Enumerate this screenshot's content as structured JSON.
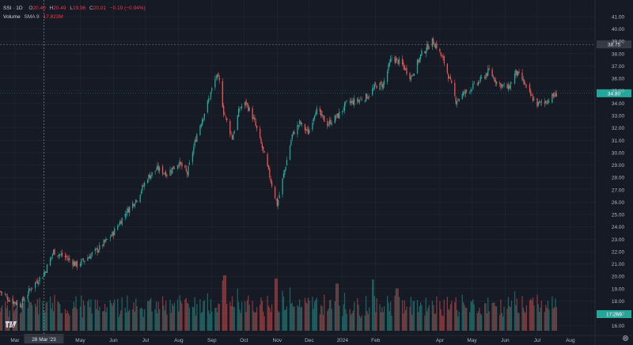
{
  "header": {
    "symbol_label": "SSI · 1D",
    "open_key": "O",
    "open": "20.40",
    "high_key": "H",
    "high": "20.49",
    "low_key": "L",
    "low": "19.96",
    "close_key": "C",
    "close": "20.01",
    "change": "−0.19 (−0.94%)",
    "volume_label": "Volume",
    "sma_label": "SMA 9",
    "sma_value": "17.823M"
  },
  "crosshair": {
    "date_label": "28 Mar '23",
    "price_label": "38.75"
  },
  "last_price_label": "34.80",
  "last_volume_label": "17.269",
  "colors": {
    "background": "#161a25",
    "up": "#26a69a",
    "down": "#ef5350",
    "grid": "#232733",
    "text": "#b2b5be",
    "last_price_tag": "#26a69a"
  },
  "icons": {
    "logo": "tradingview-logo-icon",
    "settings": "gear-icon"
  },
  "chart_data": {
    "type": "candlestick",
    "interval": "1D",
    "y_axis": {
      "ticks": [
        "16.00",
        "17.00",
        "18.00",
        "19.00",
        "20.00",
        "21.00",
        "22.00",
        "23.00",
        "24.00",
        "25.00",
        "26.00",
        "27.00",
        "28.00",
        "29.00",
        "30.00",
        "31.00",
        "32.00",
        "33.00",
        "34.00",
        "35.00",
        "36.00",
        "37.00",
        "38.00",
        "39.00",
        "40.00",
        "41.00"
      ],
      "range": [
        15.6,
        41.7
      ]
    },
    "x_axis": {
      "labels": [
        "Mar",
        "May",
        "Jun",
        "Jul",
        "Aug",
        "Sep",
        "Oct",
        "Nov",
        "Dec",
        "2024",
        "Feb",
        "Apr",
        "May",
        "Jun",
        "Jul",
        "Aug"
      ],
      "range": [
        "2023-02-15",
        "2024-08-24"
      ],
      "ticks": [
        "2023-03-01",
        "2023-05-01",
        "2023-06-01",
        "2023-07-01",
        "2023-08-01",
        "2023-09-01",
        "2023-10-01",
        "2023-11-01",
        "2023-12-01",
        "2024-01-01",
        "2024-02-01",
        "2024-04-01",
        "2024-05-01",
        "2024-06-01",
        "2024-07-01",
        "2024-08-01"
      ]
    },
    "close_path": [
      {
        "date": "2023-02-15",
        "close": 18.8
      },
      {
        "date": "2023-02-24",
        "close": 18.1
      },
      {
        "date": "2023-03-06",
        "close": 17.7
      },
      {
        "date": "2023-03-17",
        "close": 19.2
      },
      {
        "date": "2023-03-28",
        "close": 20.2
      },
      {
        "date": "2023-04-06",
        "close": 22.0
      },
      {
        "date": "2023-04-18",
        "close": 21.5
      },
      {
        "date": "2023-04-28",
        "close": 20.9
      },
      {
        "date": "2023-05-09",
        "close": 21.6
      },
      {
        "date": "2023-05-19",
        "close": 22.3
      },
      {
        "date": "2023-05-31",
        "close": 23.4
      },
      {
        "date": "2023-06-12",
        "close": 25.1
      },
      {
        "date": "2023-06-23",
        "close": 26.3
      },
      {
        "date": "2023-07-03",
        "close": 28.0
      },
      {
        "date": "2023-07-12",
        "close": 28.7
      },
      {
        "date": "2023-07-21",
        "close": 28.3
      },
      {
        "date": "2023-08-01",
        "close": 29.2
      },
      {
        "date": "2023-08-09",
        "close": 28.3
      },
      {
        "date": "2023-08-18",
        "close": 31.5
      },
      {
        "date": "2023-08-28",
        "close": 34.0
      },
      {
        "date": "2023-09-05",
        "close": 36.2
      },
      {
        "date": "2023-09-08",
        "close": 35.7
      },
      {
        "date": "2023-09-12",
        "close": 33.3
      },
      {
        "date": "2023-09-20",
        "close": 31.2
      },
      {
        "date": "2023-09-27",
        "close": 33.6
      },
      {
        "date": "2023-10-03",
        "close": 34.0
      },
      {
        "date": "2023-10-10",
        "close": 32.7
      },
      {
        "date": "2023-10-18",
        "close": 30.4
      },
      {
        "date": "2023-10-25",
        "close": 28.1
      },
      {
        "date": "2023-11-01",
        "close": 25.8
      },
      {
        "date": "2023-11-08",
        "close": 28.6
      },
      {
        "date": "2023-11-15",
        "close": 31.4
      },
      {
        "date": "2023-11-22",
        "close": 32.4
      },
      {
        "date": "2023-11-30",
        "close": 31.6
      },
      {
        "date": "2023-12-07",
        "close": 33.5
      },
      {
        "date": "2023-12-18",
        "close": 32.3
      },
      {
        "date": "2023-12-28",
        "close": 33.0
      },
      {
        "date": "2024-01-05",
        "close": 34.0
      },
      {
        "date": "2024-01-15",
        "close": 34.2
      },
      {
        "date": "2024-01-25",
        "close": 34.6
      },
      {
        "date": "2024-02-01",
        "close": 35.4
      },
      {
        "date": "2024-02-08",
        "close": 35.5
      },
      {
        "date": "2024-02-16",
        "close": 37.7
      },
      {
        "date": "2024-02-25",
        "close": 37.2
      },
      {
        "date": "2024-03-05",
        "close": 36.1
      },
      {
        "date": "2024-03-15",
        "close": 38.0
      },
      {
        "date": "2024-03-25",
        "close": 39.0
      },
      {
        "date": "2024-03-29",
        "close": 38.6
      },
      {
        "date": "2024-04-05",
        "close": 37.3
      },
      {
        "date": "2024-04-12",
        "close": 35.4
      },
      {
        "date": "2024-04-16",
        "close": 34.2
      },
      {
        "date": "2024-04-25",
        "close": 34.9
      },
      {
        "date": "2024-05-06",
        "close": 35.6
      },
      {
        "date": "2024-05-17",
        "close": 36.6
      },
      {
        "date": "2024-05-25",
        "close": 35.6
      },
      {
        "date": "2024-06-04",
        "close": 35.2
      },
      {
        "date": "2024-06-11",
        "close": 36.5
      },
      {
        "date": "2024-06-17",
        "close": 35.9
      },
      {
        "date": "2024-06-24",
        "close": 34.7
      },
      {
        "date": "2024-07-01",
        "close": 33.9
      },
      {
        "date": "2024-07-10",
        "close": 34.2
      },
      {
        "date": "2024-07-20",
        "close": 34.8
      }
    ],
    "volume_peaks": [
      {
        "date": "2023-09-13",
        "value": 0.68
      },
      {
        "date": "2023-10-31",
        "value": 0.64
      },
      {
        "date": "2023-12-27",
        "value": 0.58
      },
      {
        "date": "2024-01-29",
        "value": 0.63
      },
      {
        "date": "2024-02-21",
        "value": 0.52
      }
    ]
  }
}
